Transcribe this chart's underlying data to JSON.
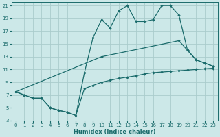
{
  "xlabel": "Humidex (Indice chaleur)",
  "bg_color": "#cce8e8",
  "grid_color": "#aacccc",
  "line_color": "#1a6b6b",
  "xlim": [
    -0.5,
    23.5
  ],
  "ylim": [
    3,
    21.5
  ],
  "xticks": [
    0,
    1,
    2,
    3,
    4,
    5,
    6,
    7,
    8,
    9,
    10,
    11,
    12,
    13,
    14,
    15,
    16,
    17,
    18,
    19,
    20,
    21,
    22,
    23
  ],
  "yticks": [
    3,
    5,
    7,
    9,
    11,
    13,
    15,
    17,
    19,
    21
  ],
  "line1_x": [
    0,
    1,
    2,
    3,
    4,
    5,
    6,
    7,
    8,
    9,
    10,
    11,
    12,
    13,
    14,
    15,
    16,
    17,
    18,
    19,
    20,
    21,
    22,
    23
  ],
  "line1_y": [
    7.5,
    7.0,
    6.5,
    6.5,
    5.0,
    4.6,
    4.3,
    3.8,
    10.5,
    16.0,
    18.8,
    17.5,
    20.2,
    21.0,
    18.5,
    18.5,
    18.8,
    21.0,
    21.0,
    19.5,
    14.0,
    12.5,
    12.0,
    11.5
  ],
  "line2_x": [
    0,
    10,
    19,
    20,
    21,
    22,
    23
  ],
  "line2_y": [
    7.5,
    13.0,
    15.5,
    14.0,
    12.5,
    12.0,
    11.5
  ],
  "line3_x": [
    0,
    1,
    2,
    3,
    4,
    5,
    6,
    7,
    8,
    9,
    10,
    11,
    12,
    13,
    14,
    15,
    16,
    17,
    18,
    19,
    20,
    21,
    22,
    23
  ],
  "line3_y": [
    7.5,
    7.0,
    6.5,
    6.5,
    5.0,
    4.6,
    4.3,
    3.8,
    8.0,
    8.5,
    9.0,
    9.3,
    9.6,
    9.8,
    10.0,
    10.3,
    10.5,
    10.6,
    10.7,
    10.8,
    10.9,
    11.0,
    11.1,
    11.2
  ]
}
